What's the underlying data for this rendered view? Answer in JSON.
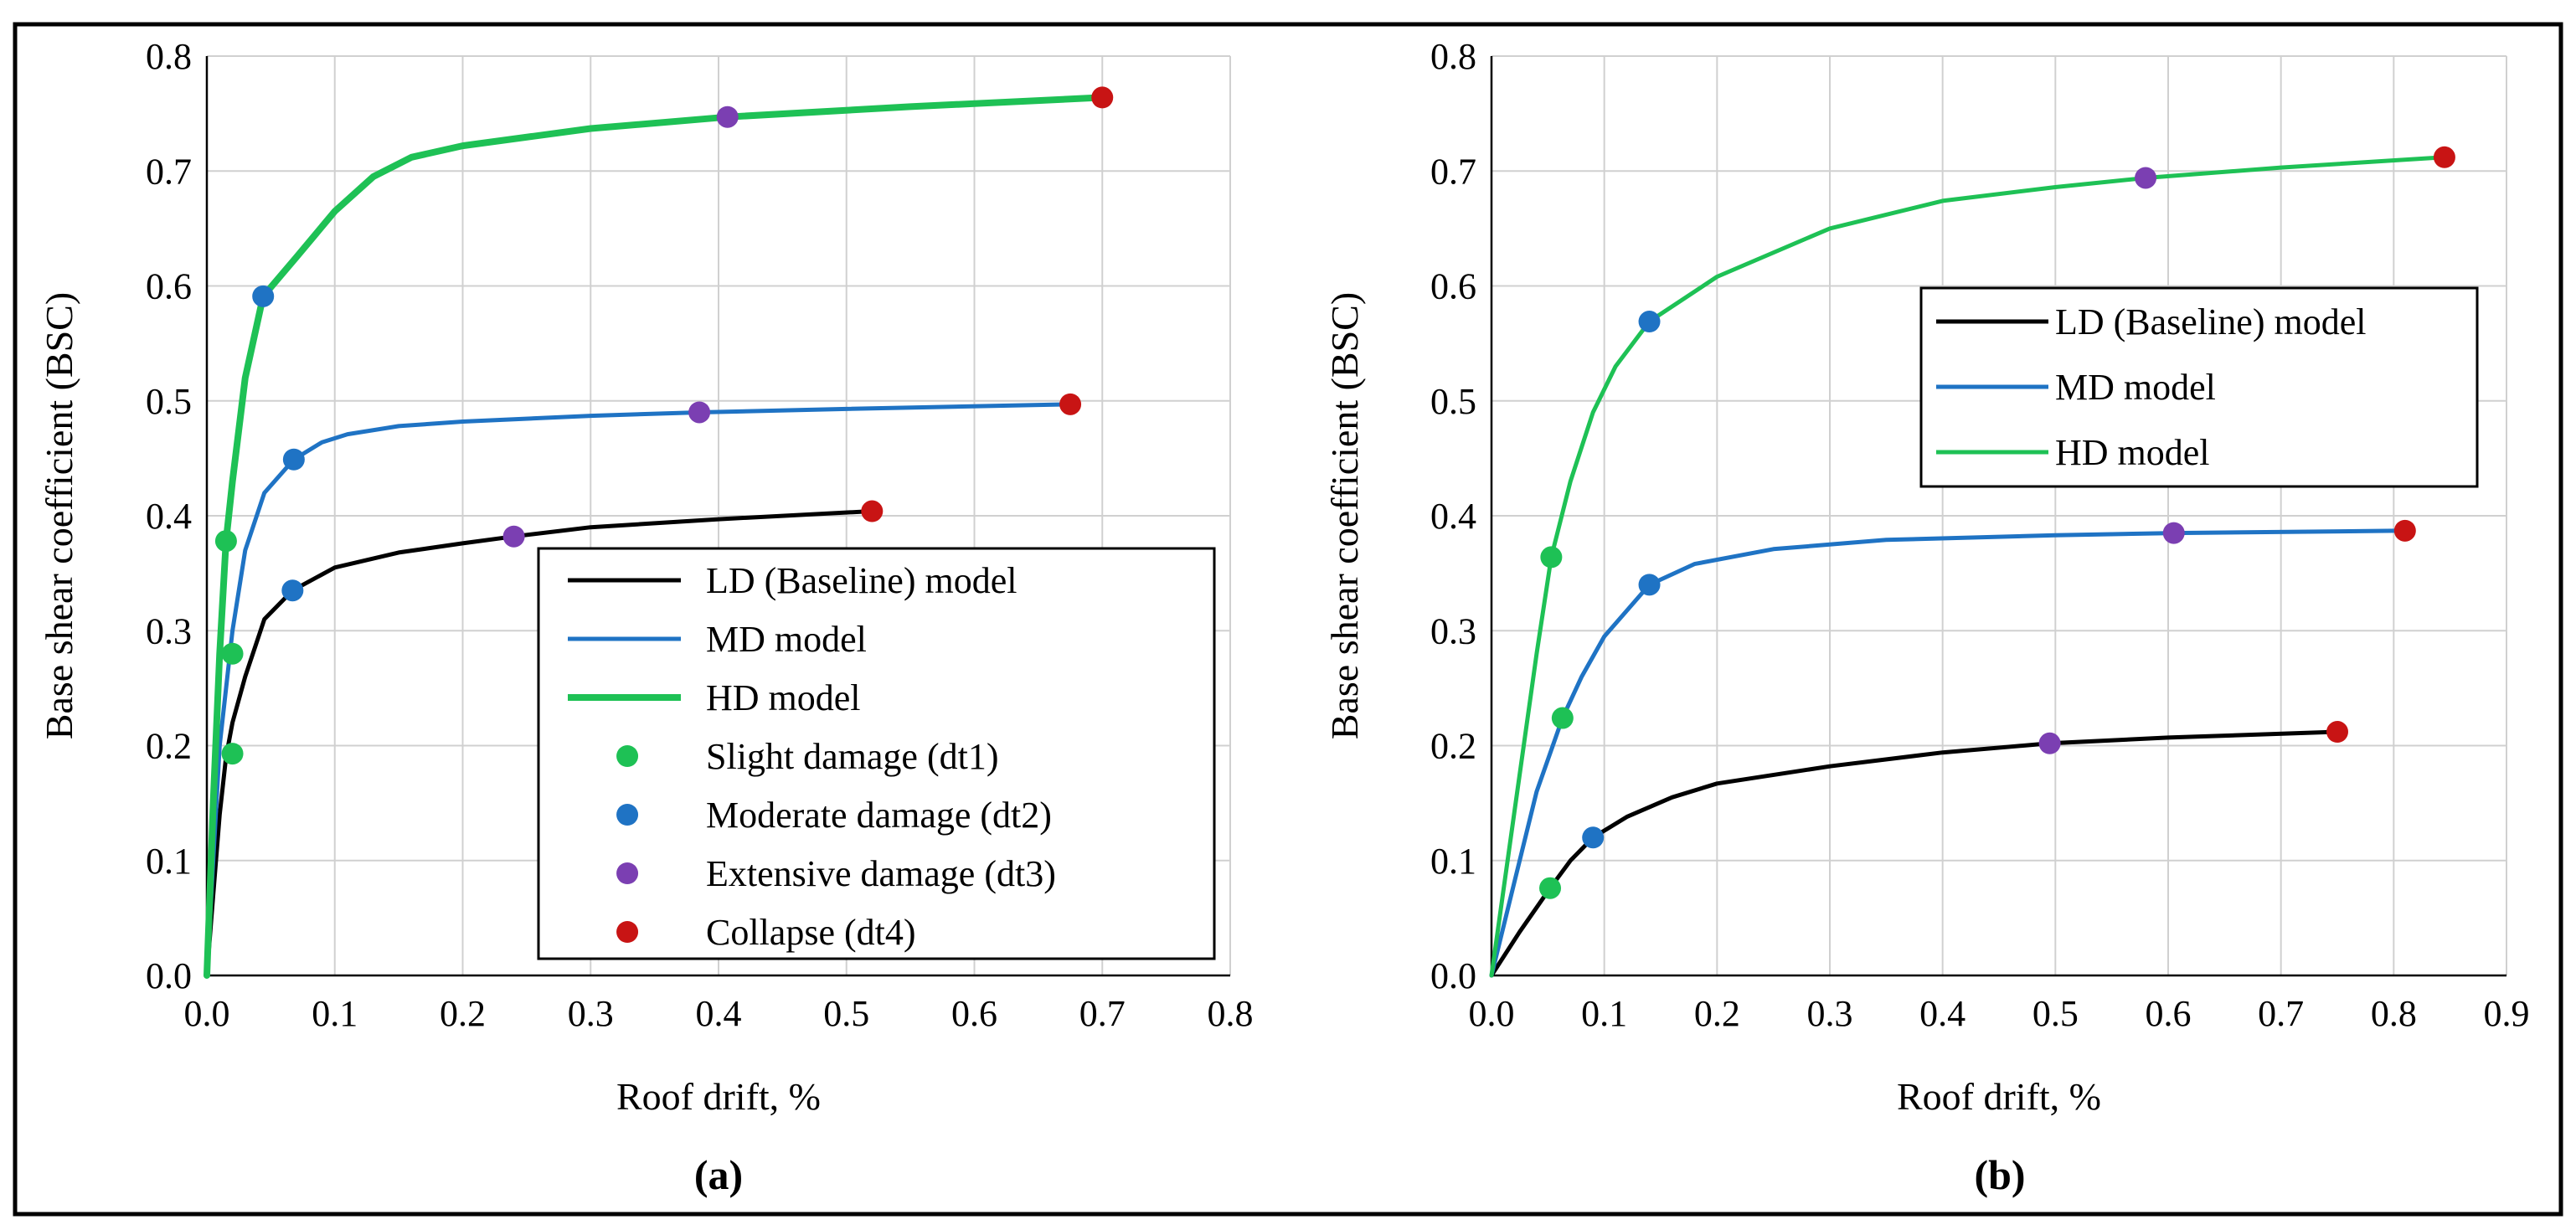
{
  "colors": {
    "ld": "#000000",
    "md": "#1f73c4",
    "hd": "#1ec155",
    "dt1": "#1ec155",
    "dt2": "#1f73c4",
    "dt3": "#7b3fb2",
    "dt4": "#c81414"
  },
  "chart_data": [
    {
      "type": "line",
      "panel_label": "(a)",
      "xlabel": "Roof drift, %",
      "ylabel": "Base shear coefficient (BSC)",
      "xlim": [
        0,
        0.8
      ],
      "ylim": [
        0,
        0.8
      ],
      "xticks": [
        0,
        0.1,
        0.2,
        0.3,
        0.4,
        0.5,
        0.6,
        0.7,
        0.8
      ],
      "yticks": [
        0,
        0.1,
        0.2,
        0.3,
        0.4,
        0.5,
        0.6,
        0.7,
        0.8
      ],
      "xtick_labels": [
        "0.0",
        "0.1",
        "0.2",
        "0.3",
        "0.4",
        "0.5",
        "0.6",
        "0.7",
        "0.8"
      ],
      "ytick_labels": [
        "0.0",
        "0.1",
        "0.2",
        "0.3",
        "0.4",
        "0.5",
        "0.6",
        "0.7",
        "0.8"
      ],
      "legend_position": "lower-right",
      "legend": [
        {
          "label": "LD (Baseline) model",
          "kind": "line",
          "color_key": "ld"
        },
        {
          "label": "MD model",
          "kind": "line",
          "color_key": "md"
        },
        {
          "label": "HD model",
          "kind": "line",
          "color_key": "hd"
        },
        {
          "label": "Slight damage (dt1)",
          "kind": "marker",
          "color_key": "dt1"
        },
        {
          "label": "Moderate damage (dt2)",
          "kind": "marker",
          "color_key": "dt2"
        },
        {
          "label": "Extensive damage (dt3)",
          "kind": "marker",
          "color_key": "dt3"
        },
        {
          "label": "Collapse (dt4)",
          "kind": "marker",
          "color_key": "dt4"
        }
      ],
      "series": [
        {
          "name": "LD (Baseline) model",
          "color_key": "ld",
          "width": 5,
          "x": [
            0,
            0.005,
            0.01,
            0.015,
            0.02,
            0.03,
            0.045,
            0.067,
            0.1,
            0.15,
            0.2,
            0.24,
            0.3,
            0.4,
            0.52
          ],
          "y": [
            0,
            0.07,
            0.14,
            0.19,
            0.22,
            0.26,
            0.31,
            0.335,
            0.355,
            0.368,
            0.376,
            0.382,
            0.39,
            0.397,
            0.404
          ]
        },
        {
          "name": "MD model",
          "color_key": "md",
          "width": 5,
          "x": [
            0,
            0.005,
            0.01,
            0.02,
            0.03,
            0.045,
            0.068,
            0.09,
            0.11,
            0.15,
            0.2,
            0.3,
            0.385,
            0.5,
            0.675
          ],
          "y": [
            0,
            0.1,
            0.2,
            0.3,
            0.37,
            0.42,
            0.449,
            0.464,
            0.471,
            0.478,
            0.482,
            0.487,
            0.49,
            0.493,
            0.497
          ]
        },
        {
          "name": "HD model",
          "color_key": "hd",
          "width": 8,
          "x": [
            0,
            0.005,
            0.01,
            0.015,
            0.02,
            0.03,
            0.044,
            0.07,
            0.1,
            0.13,
            0.16,
            0.2,
            0.3,
            0.407,
            0.55,
            0.7
          ],
          "y": [
            0,
            0.15,
            0.28,
            0.378,
            0.43,
            0.52,
            0.591,
            0.625,
            0.665,
            0.695,
            0.712,
            0.722,
            0.737,
            0.747,
            0.756,
            0.764
          ]
        }
      ],
      "markers": [
        {
          "damage": "dt1",
          "x": 0.015,
          "y": 0.378
        },
        {
          "damage": "dt1",
          "x": 0.02,
          "y": 0.28
        },
        {
          "damage": "dt1",
          "x": 0.02,
          "y": 0.193
        },
        {
          "damage": "dt2",
          "x": 0.044,
          "y": 0.591
        },
        {
          "damage": "dt2",
          "x": 0.068,
          "y": 0.449
        },
        {
          "damage": "dt2",
          "x": 0.067,
          "y": 0.335
        },
        {
          "damage": "dt3",
          "x": 0.407,
          "y": 0.747
        },
        {
          "damage": "dt3",
          "x": 0.385,
          "y": 0.49
        },
        {
          "damage": "dt3",
          "x": 0.24,
          "y": 0.382
        },
        {
          "damage": "dt4",
          "x": 0.7,
          "y": 0.764
        },
        {
          "damage": "dt4",
          "x": 0.675,
          "y": 0.497
        },
        {
          "damage": "dt4",
          "x": 0.52,
          "y": 0.404
        }
      ]
    },
    {
      "type": "line",
      "panel_label": "(b)",
      "xlabel": "Roof drift, %",
      "ylabel": "Base shear coefficient (BSC)",
      "xlim": [
        0,
        0.9
      ],
      "ylim": [
        0,
        0.8
      ],
      "xticks": [
        0,
        0.1,
        0.2,
        0.3,
        0.4,
        0.5,
        0.6,
        0.7,
        0.8,
        0.9
      ],
      "yticks": [
        0,
        0.1,
        0.2,
        0.3,
        0.4,
        0.5,
        0.6,
        0.7,
        0.8
      ],
      "xtick_labels": [
        "0.0",
        "0.1",
        "0.2",
        "0.3",
        "0.4",
        "0.5",
        "0.6",
        "0.7",
        "0.8",
        "0.9"
      ],
      "ytick_labels": [
        "0.0",
        "0.1",
        "0.2",
        "0.3",
        "0.4",
        "0.5",
        "0.6",
        "0.7",
        "0.8"
      ],
      "legend_position": "upper-right",
      "legend": [
        {
          "label": "LD (Baseline) model",
          "kind": "line",
          "color_key": "ld"
        },
        {
          "label": "MD model",
          "kind": "line",
          "color_key": "md"
        },
        {
          "label": "HD model",
          "kind": "line",
          "color_key": "hd"
        }
      ],
      "series": [
        {
          "name": "LD (Baseline) model",
          "color_key": "ld",
          "width": 5,
          "x": [
            0,
            0.025,
            0.052,
            0.07,
            0.09,
            0.12,
            0.16,
            0.2,
            0.3,
            0.4,
            0.495,
            0.6,
            0.75
          ],
          "y": [
            0,
            0.038,
            0.076,
            0.1,
            0.12,
            0.138,
            0.155,
            0.167,
            0.182,
            0.194,
            0.202,
            0.207,
            0.212
          ]
        },
        {
          "name": "MD model",
          "color_key": "md",
          "width": 5,
          "x": [
            0,
            0.02,
            0.04,
            0.063,
            0.08,
            0.1,
            0.14,
            0.18,
            0.25,
            0.35,
            0.5,
            0.605,
            0.81
          ],
          "y": [
            0,
            0.08,
            0.16,
            0.224,
            0.26,
            0.295,
            0.34,
            0.358,
            0.371,
            0.379,
            0.383,
            0.385,
            0.387
          ]
        },
        {
          "name": "HD model",
          "color_key": "hd",
          "width": 5,
          "x": [
            0,
            0.02,
            0.04,
            0.053,
            0.07,
            0.09,
            0.11,
            0.14,
            0.2,
            0.3,
            0.4,
            0.5,
            0.58,
            0.7,
            0.845
          ],
          "y": [
            0,
            0.14,
            0.28,
            0.364,
            0.43,
            0.49,
            0.53,
            0.569,
            0.608,
            0.65,
            0.674,
            0.686,
            0.694,
            0.703,
            0.712
          ]
        }
      ],
      "markers": [
        {
          "damage": "dt1",
          "x": 0.053,
          "y": 0.364
        },
        {
          "damage": "dt1",
          "x": 0.063,
          "y": 0.224
        },
        {
          "damage": "dt1",
          "x": 0.052,
          "y": 0.076
        },
        {
          "damage": "dt2",
          "x": 0.14,
          "y": 0.569
        },
        {
          "damage": "dt2",
          "x": 0.14,
          "y": 0.34
        },
        {
          "damage": "dt2",
          "x": 0.09,
          "y": 0.12
        },
        {
          "damage": "dt3",
          "x": 0.58,
          "y": 0.694
        },
        {
          "damage": "dt3",
          "x": 0.605,
          "y": 0.385
        },
        {
          "damage": "dt3",
          "x": 0.495,
          "y": 0.202
        },
        {
          "damage": "dt4",
          "x": 0.845,
          "y": 0.712
        },
        {
          "damage": "dt4",
          "x": 0.81,
          "y": 0.387
        },
        {
          "damage": "dt4",
          "x": 0.75,
          "y": 0.212
        }
      ]
    }
  ]
}
